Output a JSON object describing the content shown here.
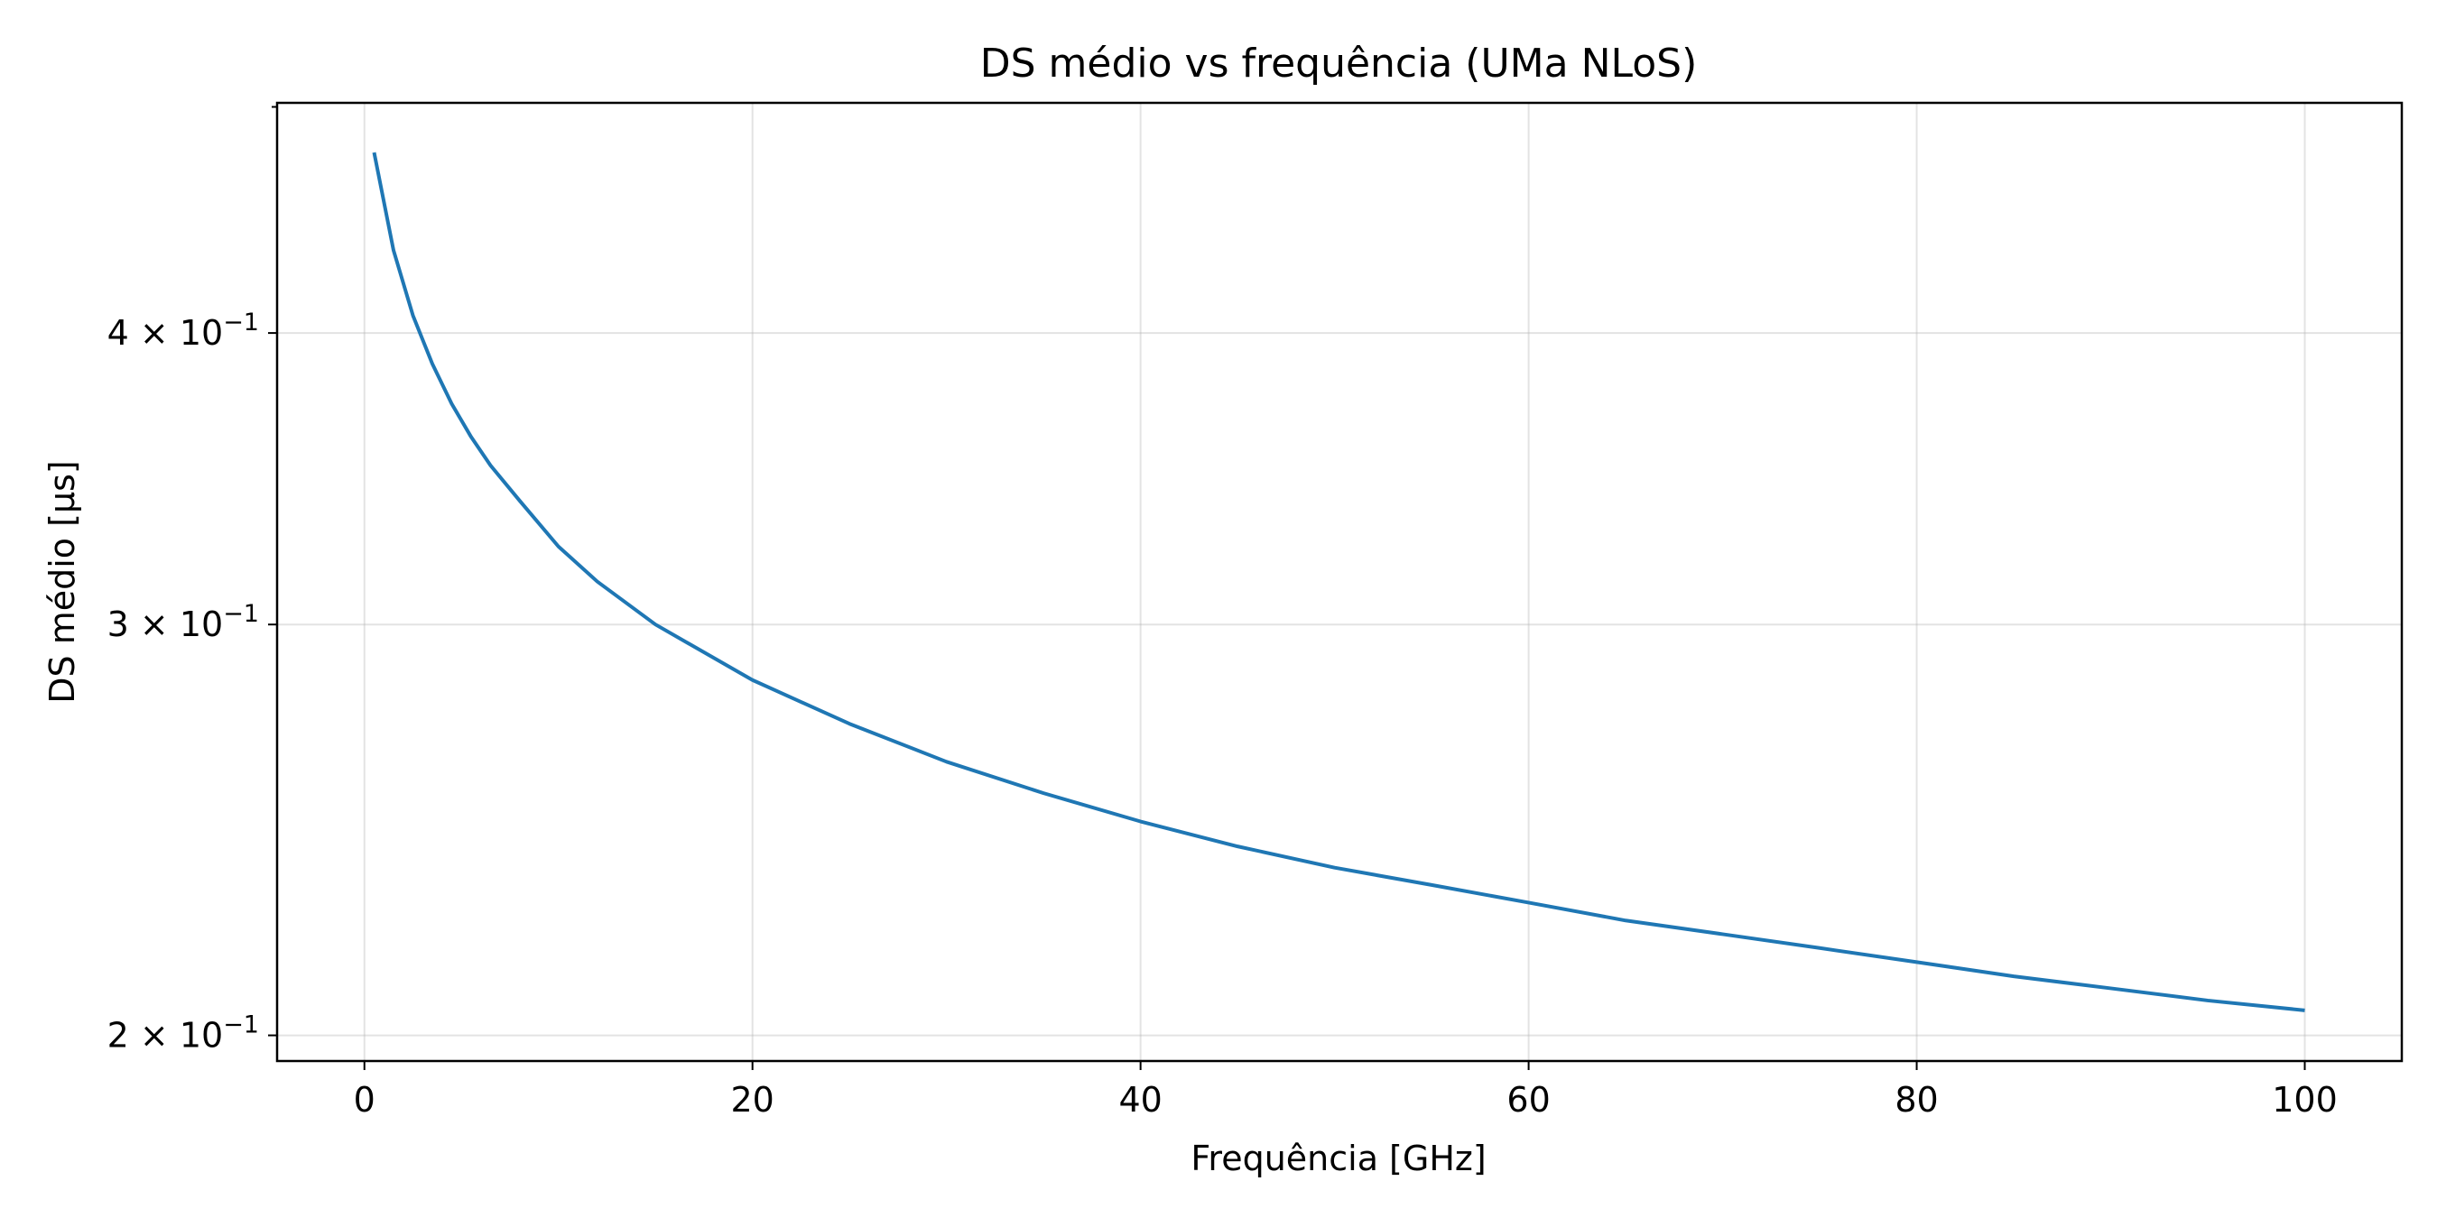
{
  "chart_data": {
    "type": "line",
    "title": "DS médio vs frequência (UMa NLoS)",
    "xlabel": "Frequência [GHz]",
    "ylabel": "DS médio [µs]",
    "xlim": [
      -4.5,
      105
    ],
    "ylim": [
      0.195,
      0.502
    ],
    "yscale": "log",
    "grid": true,
    "x_ticks": [
      {
        "value": 0,
        "label": "0"
      },
      {
        "value": 20,
        "label": "20"
      },
      {
        "value": 40,
        "label": "40"
      },
      {
        "value": 60,
        "label": "60"
      },
      {
        "value": 80,
        "label": "80"
      },
      {
        "value": 100,
        "label": "100"
      }
    ],
    "y_ticks": [
      {
        "value": 0.2,
        "label": "2 × 10",
        "exp": "−1"
      },
      {
        "value": 0.3,
        "label": "3 × 10",
        "exp": "−1"
      },
      {
        "value": 0.4,
        "label": "4 × 10",
        "exp": "−1"
      }
    ],
    "y_minor_ticks": [
      0.5
    ],
    "series": [
      {
        "color": "#1f77b4",
        "x": [
          0.5,
          1.5,
          2.5,
          3.5,
          4.5,
          5.5,
          6.5,
          8,
          10,
          12,
          15,
          20,
          25,
          30,
          35,
          40,
          45,
          50,
          55,
          60,
          65,
          70,
          75,
          80,
          85,
          90,
          95,
          100
        ],
        "y": [
          0.478,
          0.434,
          0.407,
          0.388,
          0.373,
          0.361,
          0.351,
          0.339,
          0.324,
          0.313,
          0.3,
          0.284,
          0.272,
          0.262,
          0.254,
          0.247,
          0.241,
          0.236,
          0.232,
          0.228,
          0.224,
          0.221,
          0.218,
          0.215,
          0.212,
          0.2095,
          0.207,
          0.205
        ]
      }
    ]
  }
}
